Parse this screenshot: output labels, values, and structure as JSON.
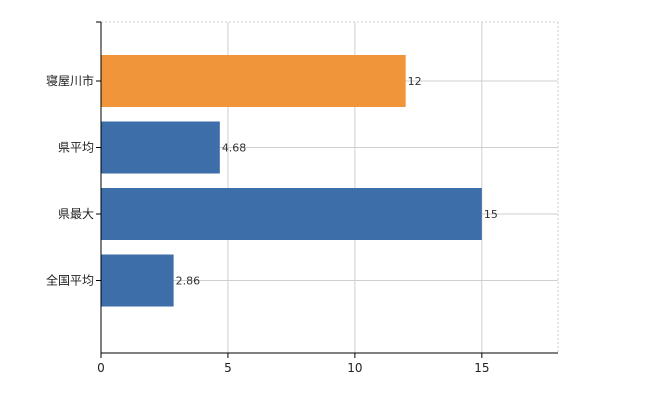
{
  "chart_data": {
    "type": "bar",
    "orientation": "horizontal",
    "categories": [
      "寝屋川市",
      "県平均",
      "県最大",
      "全国平均"
    ],
    "values": [
      12,
      4.68,
      15,
      2.86
    ],
    "value_labels": [
      "12",
      "4.68",
      "15",
      "2.86"
    ],
    "bar_colors": [
      "#F0953A",
      "#3D6EAA",
      "#3D6EAA",
      "#3D6EAA"
    ],
    "xlim": [
      0,
      18
    ],
    "x_ticks": [
      0,
      5,
      10,
      15
    ],
    "x_tick_labels": [
      "0",
      "5",
      "10",
      "15"
    ],
    "grid": true,
    "title": "",
    "xlabel": "",
    "ylabel": ""
  }
}
